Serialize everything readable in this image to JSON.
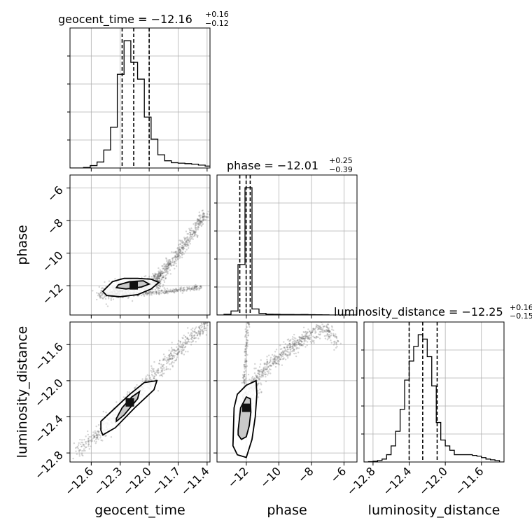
{
  "chart_data": {
    "type": "corner",
    "params": [
      "geocent_time",
      "phase",
      "luminosity_distance"
    ],
    "grid": true,
    "titles": [
      {
        "param": "geocent_time",
        "label": "geocent_time = −12.16",
        "sup": "+0.16",
        "sub": "−0.12"
      },
      {
        "param": "phase",
        "label": "phase = −12.01",
        "sup": "+0.25",
        "sub": "−0.39"
      },
      {
        "param": "luminosity_distance",
        "label": "luminosity_distance = −12.25",
        "sup": "+0.16",
        "sub": "−0.15"
      }
    ],
    "axis_labels": {
      "x": [
        "geocent_time",
        "phase",
        "luminosity_distance"
      ],
      "y": [
        "phase",
        "luminosity_distance"
      ]
    },
    "ranges": {
      "geocent_time": [
        -12.82,
        -11.37
      ],
      "phase": [
        -13.8,
        -5.2
      ],
      "luminosity_distance": [
        -12.9,
        -11.35
      ]
    },
    "ticks": {
      "geocent_time": {
        "values": [
          -12.6,
          -12.3,
          -12.0,
          -11.7,
          -11.4
        ],
        "labels": [
          "−12.6",
          "−12.3",
          "−12.0",
          "−11.7",
          "−11.4"
        ]
      },
      "phase": {
        "values": [
          -12,
          -10,
          -8,
          -6
        ],
        "labels": [
          "−12",
          "−10",
          "−8",
          "−6"
        ]
      },
      "luminosity_distance": {
        "values": [
          -12.8,
          -12.4,
          -12.0,
          -11.6
        ],
        "labels": [
          "−12.8",
          "−12.4",
          "−12.0",
          "−11.6"
        ]
      }
    },
    "quantiles": {
      "geocent_time": [
        -12.28,
        -12.16,
        -12.0
      ],
      "phase": [
        -12.4,
        -12.01,
        -11.76
      ],
      "luminosity_distance": [
        -12.4,
        -12.25,
        -12.09
      ]
    },
    "histograms": {
      "geocent_time": {
        "edges": [
          -12.82,
          -12.75,
          -12.68,
          -12.61,
          -12.54,
          -12.47,
          -12.4,
          -12.33,
          -12.26,
          -12.19,
          -12.12,
          -12.05,
          -11.98,
          -11.91,
          -11.84,
          -11.77,
          -11.7,
          -11.63,
          -11.56,
          -11.49,
          -11.42,
          -11.37
        ],
        "counts": [
          0,
          0,
          2,
          10,
          25,
          75,
          170,
          390,
          530,
          440,
          370,
          212,
          120,
          55,
          30,
          22,
          20,
          18,
          16,
          12,
          8
        ]
      },
      "phase": {
        "edges": [
          -13.8,
          -13.37,
          -12.94,
          -12.51,
          -12.08,
          -11.65,
          -11.22,
          -10.79,
          -10.36,
          -9.93,
          -9.5,
          -9.07,
          -8.64,
          -8.21,
          -7.78,
          -7.35,
          -6.92,
          -6.49,
          -6.06,
          -5.63,
          -5.2
        ],
        "counts": [
          0,
          10,
          60,
          750,
          1890,
          90,
          25,
          12,
          10,
          8,
          8,
          6,
          8,
          5,
          4,
          2,
          0,
          0,
          0,
          0
        ]
      },
      "luminosity_distance": {
        "edges": [
          -12.9,
          -12.85,
          -12.8,
          -12.75,
          -12.7,
          -12.65,
          -12.6,
          -12.55,
          -12.5,
          -12.45,
          -12.4,
          -12.35,
          -12.3,
          -12.25,
          -12.2,
          -12.15,
          -12.1,
          -12.05,
          -12.0,
          -11.95,
          -11.9,
          -11.85,
          -11.8,
          -11.75,
          -11.7,
          -11.65,
          -11.6,
          -11.55,
          -11.5,
          -11.45,
          -11.4,
          -11.35
        ],
        "counts": [
          0,
          2,
          5,
          10,
          20,
          50,
          110,
          210,
          360,
          560,
          690,
          790,
          870,
          840,
          720,
          520,
          270,
          150,
          110,
          80,
          50,
          50,
          50,
          50,
          45,
          40,
          30,
          20,
          15,
          10,
          0
        ]
      }
    },
    "scatter": {
      "geocent_time__phase": {
        "main": {
          "x": [
            -12.5,
            -12.38,
            -12.28,
            -12.18,
            -12.08,
            -11.98,
            -11.88
          ],
          "y": [
            -12.5,
            -12.35,
            -12.2,
            -12.1,
            -12.0,
            -11.9,
            -11.7
          ]
        },
        "upper": {
          "x": [
            -11.95,
            -11.9,
            -11.85,
            -11.8,
            -11.75,
            -11.7,
            -11.64,
            -11.58,
            -11.52,
            -11.46,
            -11.42
          ],
          "y": [
            -11.6,
            -11.4,
            -11.1,
            -10.8,
            -10.4,
            -10.0,
            -9.5,
            -9.0,
            -8.5,
            -8.0,
            -7.6
          ]
        },
        "lower": {
          "x": [
            -12.4,
            -12.2,
            -12.0,
            -11.8,
            -11.6,
            -11.45
          ],
          "y": [
            -12.6,
            -12.55,
            -12.45,
            -12.35,
            -12.2,
            -12.05
          ]
        },
        "contours": [
          {
            "x": [
              -12.48,
              -12.38,
              -12.26,
              -12.12,
              -11.98,
              -11.9,
              -11.98,
              -12.12,
              -12.3,
              -12.44
            ],
            "y": [
              -12.35,
              -11.75,
              -11.55,
              -11.55,
              -11.6,
              -11.8,
              -12.2,
              -12.55,
              -12.68,
              -12.6
            ]
          },
          {
            "x": [
              -12.32,
              -12.2,
              -12.06,
              -12.0,
              -12.08,
              -12.24,
              -12.34
            ],
            "y": [
              -11.95,
              -11.75,
              -11.7,
              -11.9,
              -12.08,
              -12.2,
              -12.12
            ]
          }
        ],
        "core": [
          -12.16,
          -11.98
        ]
      },
      "geocent_time__luminosity_distance": {
        "main": {
          "x": [
            -12.75,
            -12.6,
            -12.45,
            -12.3,
            -12.15,
            -12.0,
            -11.85,
            -11.7,
            -11.55,
            -11.4
          ],
          "y": [
            -12.8,
            -12.65,
            -12.5,
            -12.33,
            -12.16,
            -12.0,
            -11.83,
            -11.66,
            -11.5,
            -11.38
          ]
        },
        "contours": [
          {
            "x": [
              -12.5,
              -12.5,
              -12.35,
              -12.2,
              -12.05,
              -11.92,
              -11.95,
              -12.15,
              -12.35,
              -12.48
            ],
            "y": [
              -12.55,
              -12.45,
              -12.3,
              -12.15,
              -12.02,
              -12.0,
              -12.1,
              -12.3,
              -12.52,
              -12.6
            ]
          },
          {
            "x": [
              -12.34,
              -12.28,
              -12.18,
              -12.1,
              -12.12,
              -12.26,
              -12.34
            ],
            "y": [
              -12.42,
              -12.3,
              -12.18,
              -12.12,
              -12.2,
              -12.38,
              -12.45
            ]
          }
        ],
        "core": [
          -12.2,
          -12.24
        ]
      },
      "phase__luminosity_distance": {
        "main": {
          "x": [
            -12.3,
            -12.1,
            -11.8,
            -11.4,
            -11.0,
            -10.5,
            -10.0,
            -9.5,
            -9.0,
            -8.5,
            -8.0,
            -7.5,
            -7.0,
            -6.5
          ],
          "y": [
            -12.5,
            -12.35,
            -12.15,
            -12.0,
            -11.9,
            -11.8,
            -11.75,
            -11.65,
            -11.6,
            -11.55,
            -11.5,
            -11.4,
            -11.45,
            -11.6
          ]
        },
        "spike": {
          "x": [
            -12.3,
            -12.2,
            -12.1,
            -12.0,
            -11.9,
            -11.85
          ],
          "y": [
            -12.5,
            -12.2,
            -11.9,
            -11.6,
            -11.35,
            -11.2
          ]
        },
        "contours": [
          {
            "x": [
              -12.8,
              -12.75,
              -12.55,
              -12.0,
              -11.4,
              -11.35,
              -11.45,
              -11.65,
              -12.0,
              -12.55,
              -12.82
            ],
            "y": [
              -12.6,
              -12.3,
              -12.15,
              -12.05,
              -12.0,
              -12.15,
              -12.4,
              -12.65,
              -12.85,
              -12.82,
              -12.72
            ]
          },
          {
            "x": [
              -12.5,
              -12.35,
              -12.0,
              -11.75,
              -11.72,
              -11.82,
              -12.0,
              -12.3,
              -12.5
            ],
            "y": [
              -12.55,
              -12.3,
              -12.18,
              -12.2,
              -12.35,
              -12.5,
              -12.62,
              -12.65,
              -12.6
            ]
          }
        ],
        "core": [
          -12.0,
          -12.3
        ]
      }
    }
  }
}
